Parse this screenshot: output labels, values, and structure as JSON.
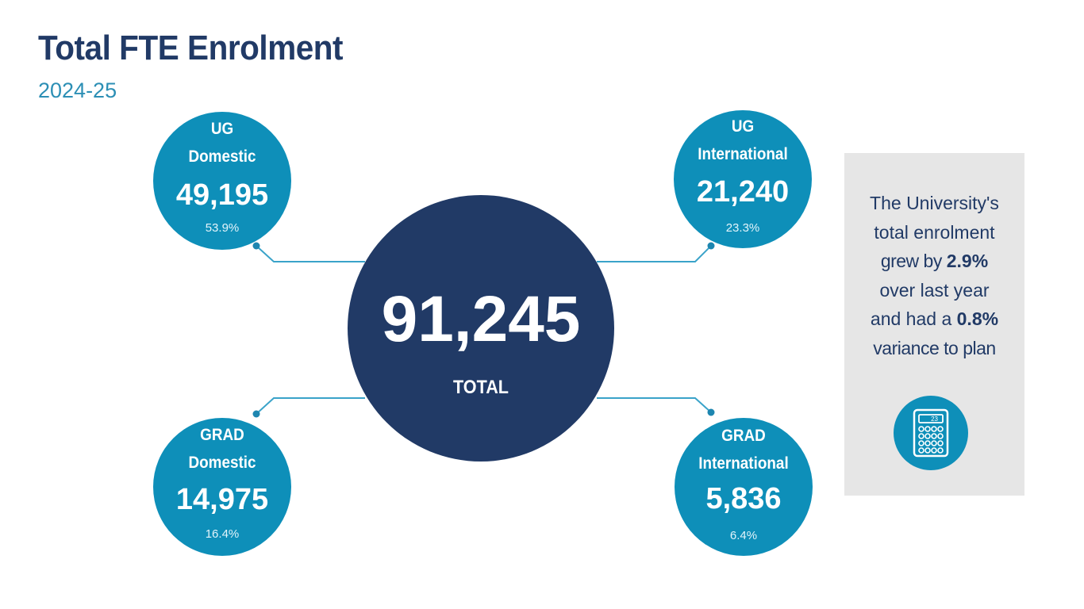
{
  "header": {
    "title": "Total FTE Enrolment",
    "subtitle": "2024-25"
  },
  "total": {
    "value": "91,245",
    "label": "TOTAL"
  },
  "segments": [
    {
      "line1": "UG",
      "line2": "Domestic",
      "value": "49,195",
      "percent": "53.9%"
    },
    {
      "line1": "UG",
      "line2": "International",
      "value": "21,240",
      "percent": "23.3%"
    },
    {
      "line1": "GRAD",
      "line2": "Domestic",
      "value": "14,975",
      "percent": "16.4%"
    },
    {
      "line1": "GRAD",
      "line2": "International",
      "value": "5,836",
      "percent": "6.4%"
    }
  ],
  "callout": {
    "line1": "The University's",
    "line2": "total enrolment",
    "line3_prefix": "grew by ",
    "line3_value": "2.9%",
    "line4": "over last year",
    "line5_prefix": "and had a ",
    "line5_value": "0.8%",
    "line6": "variance to plan",
    "icon": "calculator-icon",
    "calculator_display": "23"
  },
  "colors": {
    "navy": "#213a66",
    "teal": "#0e8fb9",
    "panel": "#e6e6e6",
    "subtitle": "#2c8fb5"
  }
}
